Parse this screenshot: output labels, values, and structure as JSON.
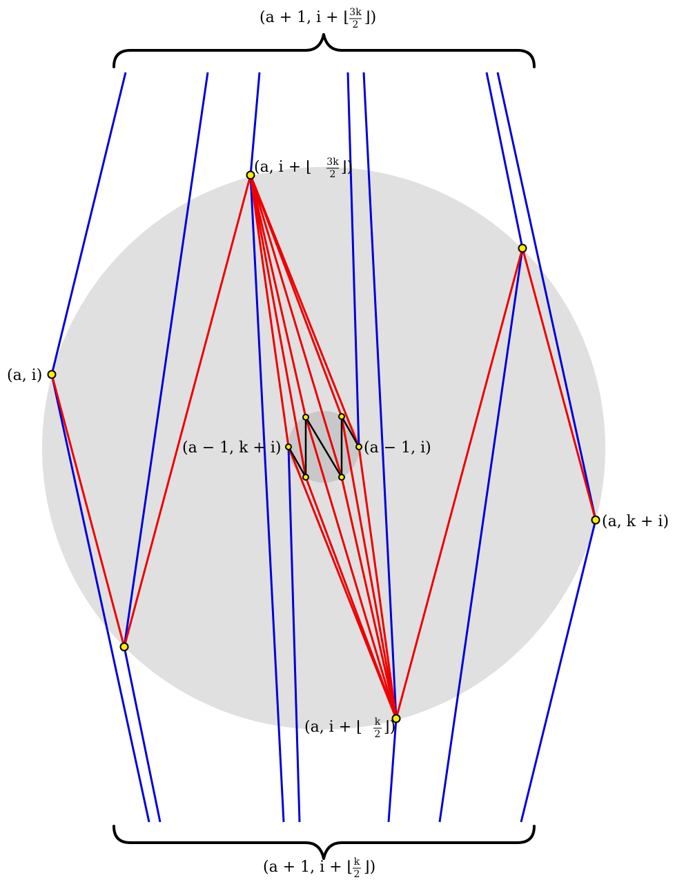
{
  "labels": {
    "top_brace": {
      "prefix": "(a + 1, i + ⌊",
      "num": "3k",
      "den": "2",
      "suffix": "⌋)"
    },
    "bottom_brace": {
      "prefix": "(a + 1, i + ⌊",
      "num": "k",
      "den": "2",
      "suffix": "⌋)"
    },
    "a_i": "(a, i)",
    "a_i_3k2": {
      "prefix": "(a, i + ⌊",
      "num": "3k",
      "den": "2",
      "suffix": "⌋)"
    },
    "a_i_k2": {
      "prefix": "(a, i + ⌊",
      "num": "k",
      "den": "2",
      "suffix": "⌋)"
    },
    "a_k_i": "(a, k + i)",
    "am1_k_i": "(a − 1, k + i)",
    "am1_i": "(a − 1, i)"
  },
  "colors": {
    "disk": "#e0e0e0",
    "inner_disk": "#c8c8c8",
    "blue_edge": "#0000dd",
    "red_edge": "#ee0000",
    "node_fill": "#ffee00"
  }
}
